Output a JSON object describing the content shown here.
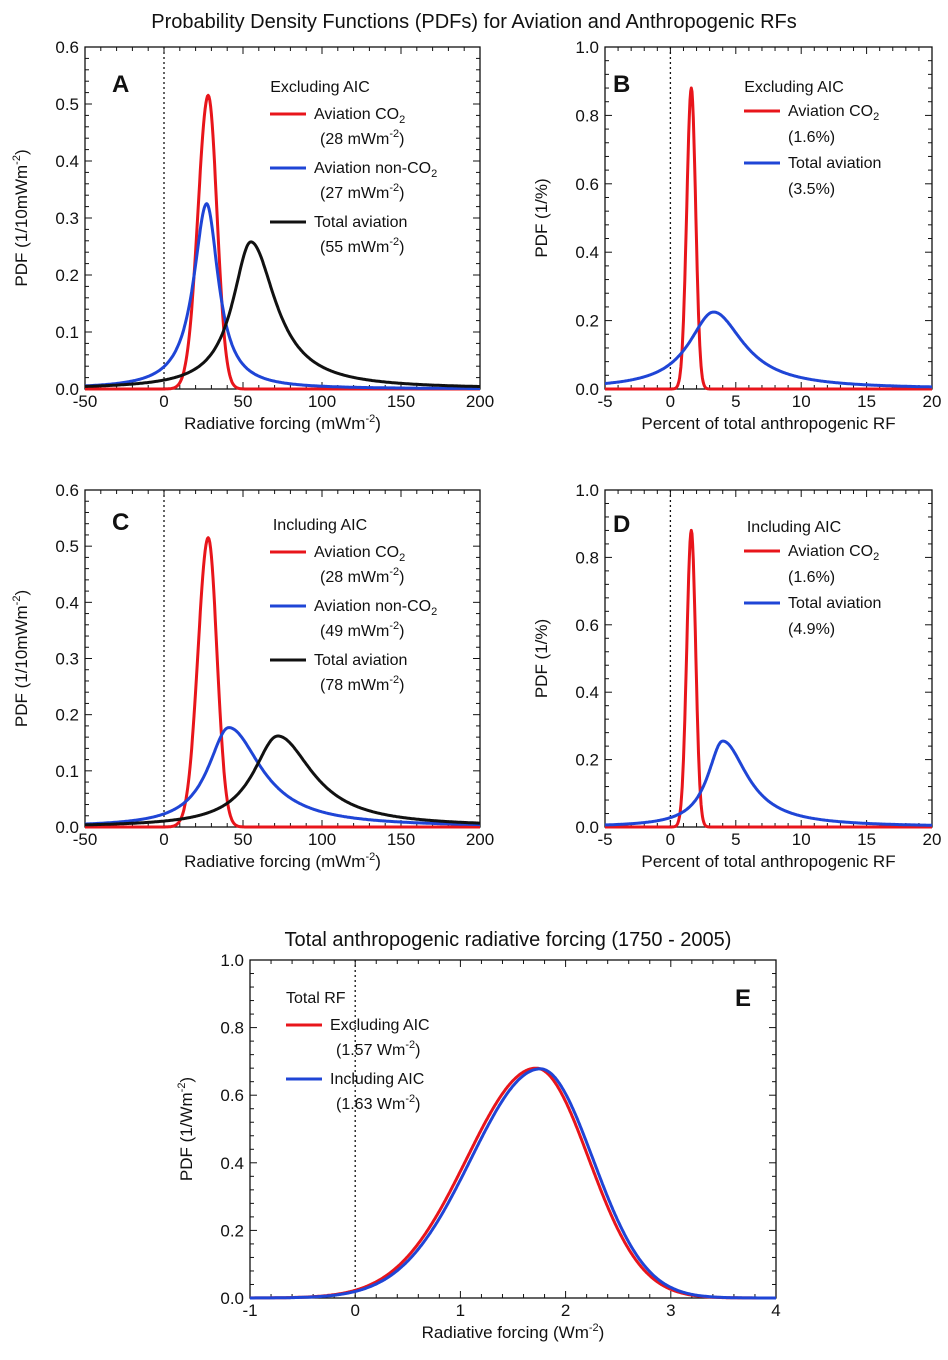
{
  "figure_title": "Probability Density Functions (PDFs) for Aviation and Anthropogenic RFs",
  "colors": {
    "red": "#e8151b",
    "blue": "#1f45d6",
    "black": "#111111"
  },
  "chart_data": [
    {
      "id": "A",
      "type": "line",
      "panel_label": "A",
      "xlabel": "Radiative forcing (mWm",
      "xlabel_sup": "-2",
      "xlabel_end": ")",
      "ylabel": "PDF (1/10mWm",
      "ylabel_sup": "-2",
      "ylabel_end": ")",
      "xlim": [
        -50,
        200
      ],
      "ylim": [
        0,
        0.6
      ],
      "xticks": [
        "-50",
        "0",
        "50",
        "100",
        "150",
        "200"
      ],
      "yticks": [
        "0.0",
        "0.1",
        "0.2",
        "0.3",
        "0.4",
        "0.5",
        "0.6"
      ],
      "legend_header": "Excluding AIC",
      "series": [
        {
          "name": "Aviation CO",
          "name_sub": "2",
          "value": "(28 mWm",
          "value_sup": "-2",
          "value_end": ")",
          "color": "#e8151b",
          "shape": "gauss",
          "peak_x": 28,
          "peak_y": 0.515,
          "sigma_left": 6.5,
          "sigma_right": 5.5
        },
        {
          "name": "Aviation non-CO",
          "name_sub": "2",
          "value": "(27 mWm",
          "value_sup": "-2",
          "value_end": ")",
          "color": "#1f45d6",
          "shape": "lorentz",
          "peak_x": 27,
          "peak_y": 0.325,
          "hwhm_left": 10,
          "hwhm_right": 9
        },
        {
          "name": "Total aviation",
          "name_sub": "",
          "value": "(55 mWm",
          "value_sup": "-2",
          "value_end": ")",
          "color": "#111111",
          "shape": "lorentz",
          "peak_x": 55,
          "peak_y": 0.258,
          "hwhm_left": 14,
          "hwhm_right": 19
        }
      ]
    },
    {
      "id": "B",
      "type": "line",
      "panel_label": "B",
      "xlabel": "Percent of total anthropogenic RF",
      "xlabel_sup": "",
      "xlabel_end": "",
      "ylabel": "PDF (1/%)",
      "ylabel_sup": "",
      "ylabel_end": "",
      "xlim": [
        -5,
        20
      ],
      "ylim": [
        0,
        1.0
      ],
      "xticks": [
        "-5",
        "0",
        "5",
        "10",
        "15",
        "20"
      ],
      "yticks": [
        "0.0",
        "0.2",
        "0.4",
        "0.6",
        "0.8",
        "1.0"
      ],
      "legend_header": "Excluding AIC",
      "series": [
        {
          "name": "Aviation CO",
          "name_sub": "2",
          "value": "(1.6%)",
          "value_sup": "",
          "value_end": "",
          "color": "#e8151b",
          "shape": "gauss",
          "peak_x": 1.6,
          "peak_y": 0.88,
          "sigma_left": 0.35,
          "sigma_right": 0.33
        },
        {
          "name": "Total aviation",
          "name_sub": "",
          "value": "(3.5%)",
          "value_sup": "",
          "value_end": "",
          "color": "#1f45d6",
          "shape": "lorentz",
          "peak_x": 3.3,
          "peak_y": 0.225,
          "hwhm_left": 2.3,
          "hwhm_right": 2.8
        }
      ]
    },
    {
      "id": "C",
      "type": "line",
      "panel_label": "C",
      "xlabel": "Radiative forcing (mWm",
      "xlabel_sup": "-2",
      "xlabel_end": ")",
      "ylabel": "PDF (1/10mWm",
      "ylabel_sup": "-2",
      "ylabel_end": ")",
      "xlim": [
        -50,
        200
      ],
      "ylim": [
        0,
        0.6
      ],
      "xticks": [
        "-50",
        "0",
        "50",
        "100",
        "150",
        "200"
      ],
      "yticks": [
        "0.0",
        "0.1",
        "0.2",
        "0.3",
        "0.4",
        "0.5",
        "0.6"
      ],
      "legend_header": "Including AIC",
      "series": [
        {
          "name": "Aviation CO",
          "name_sub": "2",
          "value": "(28 mWm",
          "value_sup": "-2",
          "value_end": ")",
          "color": "#e8151b",
          "shape": "gauss",
          "peak_x": 28,
          "peak_y": 0.515,
          "sigma_left": 6.5,
          "sigma_right": 5.5
        },
        {
          "name": "Aviation non-CO",
          "name_sub": "2",
          "value": "(49 mWm",
          "value_sup": "-2",
          "value_end": ")",
          "color": "#1f45d6",
          "shape": "lorentz",
          "peak_x": 41,
          "peak_y": 0.177,
          "hwhm_left": 16,
          "hwhm_right": 25
        },
        {
          "name": "Total aviation",
          "name_sub": "",
          "value": "(78 mWm",
          "value_sup": "-2",
          "value_end": ")",
          "color": "#111111",
          "shape": "lorentz",
          "peak_x": 72,
          "peak_y": 0.162,
          "hwhm_left": 19,
          "hwhm_right": 27
        }
      ]
    },
    {
      "id": "D",
      "type": "line",
      "panel_label": "D",
      "xlabel": "Percent of total anthropogenic RF",
      "xlabel_sup": "",
      "xlabel_end": "",
      "ylabel": "PDF (1/%)",
      "ylabel_sup": "",
      "ylabel_end": "",
      "xlim": [
        -5,
        20
      ],
      "ylim": [
        0,
        1.0
      ],
      "xticks": [
        "-5",
        "0",
        "5",
        "10",
        "15",
        "20"
      ],
      "yticks": [
        "0.0",
        "0.2",
        "0.4",
        "0.6",
        "0.8",
        "1.0"
      ],
      "legend_header": "Including AIC",
      "series": [
        {
          "name": "Aviation CO",
          "name_sub": "2",
          "value": "(1.6%)",
          "value_sup": "",
          "value_end": "",
          "color": "#e8151b",
          "shape": "gauss",
          "peak_x": 1.6,
          "peak_y": 0.88,
          "sigma_left": 0.35,
          "sigma_right": 0.33
        },
        {
          "name": "Total aviation",
          "name_sub": "",
          "value": "(4.9%)",
          "value_sup": "",
          "value_end": "",
          "color": "#1f45d6",
          "shape": "lorentz",
          "peak_x": 4.0,
          "peak_y": 0.255,
          "hwhm_left": 1.4,
          "hwhm_right": 2.3
        }
      ]
    },
    {
      "id": "E",
      "type": "line",
      "panel_label": "E",
      "title": "Total anthropogenic radiative forcing (1750 - 2005)",
      "xlabel": "Radiative forcing (Wm",
      "xlabel_sup": "-2",
      "xlabel_end": ")",
      "ylabel": "PDF (1/Wm",
      "ylabel_sup": "-2",
      "ylabel_end": ")",
      "xlim": [
        -1,
        4
      ],
      "ylim": [
        0,
        1.0
      ],
      "xticks": [
        "-1",
        "0",
        "1",
        "2",
        "3",
        "4"
      ],
      "yticks": [
        "0.0",
        "0.2",
        "0.4",
        "0.6",
        "0.8",
        "1.0"
      ],
      "legend_header": "Total RF",
      "series": [
        {
          "name": "Excluding AIC",
          "name_sub": "",
          "value": "(1.57 Wm",
          "value_sup": "-2",
          "value_end": ")",
          "color": "#e8151b",
          "shape": "gauss",
          "peak_x": 1.72,
          "peak_y": 0.68,
          "sigma_left": 0.66,
          "sigma_right": 0.5
        },
        {
          "name": "Including AIC",
          "name_sub": "",
          "value": "(1.63 Wm",
          "value_sup": "-2",
          "value_end": ")",
          "color": "#1f45d6",
          "shape": "gauss",
          "peak_x": 1.76,
          "peak_y": 0.678,
          "sigma_left": 0.66,
          "sigma_right": 0.5
        }
      ]
    }
  ]
}
